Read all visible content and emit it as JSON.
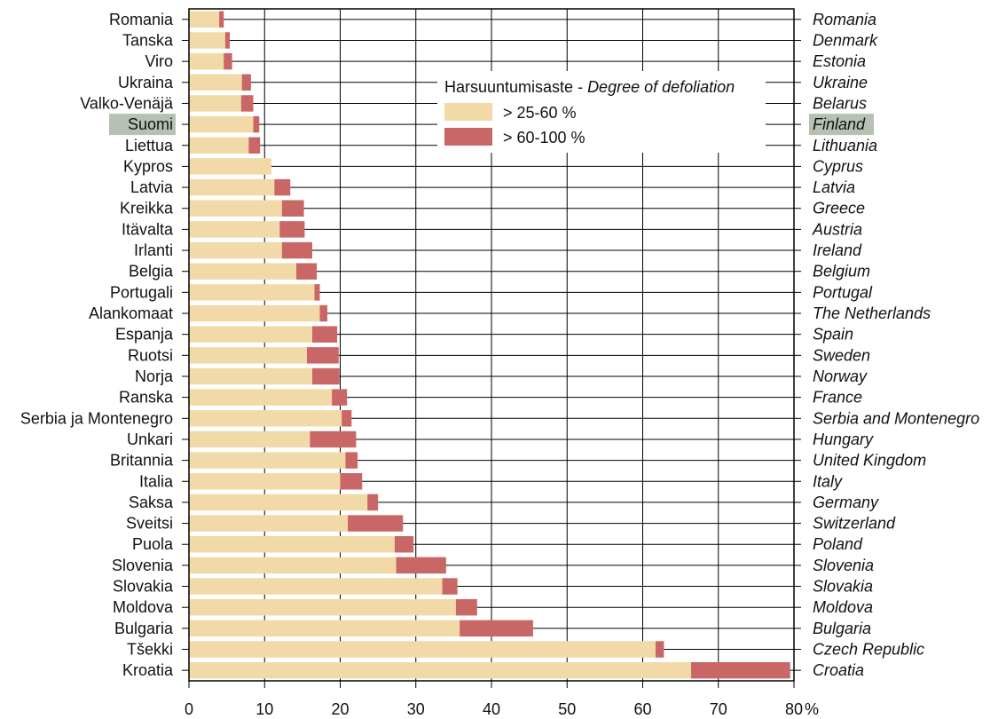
{
  "chart_data": {
    "type": "bar",
    "orientation": "horizontal",
    "stacked": true,
    "categories": [
      "Romania",
      "Tanska",
      "Viro",
      "Ukraina",
      "Valko-Venäjä",
      "Suomi",
      "Liettua",
      "Kypros",
      "Latvia",
      "Kreikka",
      "Itävalta",
      "Irlanti",
      "Belgia",
      "Portugali",
      "Alankomaat",
      "Espanja",
      "Ruotsi",
      "Norja",
      "Ranska",
      "Serbia ja Montenegro",
      "Unkari",
      "Britannia",
      "Italia",
      "Saksa",
      "Sveitsi",
      "Puola",
      "Slovenia",
      "Slovakia",
      "Moldova",
      "Bulgaria",
      "Tšekki",
      "Kroatia"
    ],
    "categories_en": [
      "Romania",
      "Denmark",
      "Estonia",
      "Ukraine",
      "Belarus",
      "Finland",
      "Lithuania",
      "Cyprus",
      "Latvia",
      "Greece",
      "Austria",
      "Ireland",
      "Belgium",
      "Portugal",
      "The Netherlands",
      "Spain",
      "Sweden",
      "Norway",
      "France",
      "Serbia and Montenegro",
      "Hungary",
      "United Kingdom",
      "Italy",
      "Germany",
      "Switzerland",
      "Poland",
      "Slovenia",
      "Slovakia",
      "Moldova",
      "Bulgaria",
      "Czech Republic",
      "Croatia"
    ],
    "highlight": "Suomi",
    "highlight_en": "Finland",
    "series": [
      {
        "name": "> 25-60 %",
        "color": "#f2d9a8",
        "values": [
          4.0,
          4.8,
          4.6,
          7.0,
          6.9,
          8.5,
          7.9,
          10.9,
          11.3,
          12.3,
          12.0,
          12.3,
          14.2,
          16.6,
          17.3,
          16.3,
          15.6,
          16.3,
          18.9,
          20.2,
          16.0,
          20.7,
          20.0,
          23.6,
          21.0,
          27.2,
          27.4,
          33.5,
          35.3,
          35.8,
          61.7,
          66.4
        ]
      },
      {
        "name": "> 60-100 %",
        "color": "#c96666",
        "values": [
          0.6,
          0.6,
          1.1,
          1.2,
          1.6,
          0.8,
          1.5,
          0.0,
          2.1,
          2.9,
          3.3,
          4.0,
          2.7,
          0.7,
          1.0,
          3.3,
          4.2,
          3.6,
          2.0,
          1.3,
          6.1,
          1.6,
          2.9,
          1.4,
          7.3,
          2.5,
          6.6,
          2.0,
          2.8,
          9.7,
          1.1,
          13.1
        ]
      }
    ],
    "xlim": [
      0,
      80
    ],
    "xticks": [
      "0",
      "10",
      "20",
      "30",
      "40",
      "50",
      "60",
      "70",
      "80"
    ],
    "x_unit": "%",
    "grid": true,
    "legend": {
      "title_fi": "Harsuuntumisaste - ",
      "title_en": "Degree of defoliation",
      "position": "top-right"
    }
  }
}
